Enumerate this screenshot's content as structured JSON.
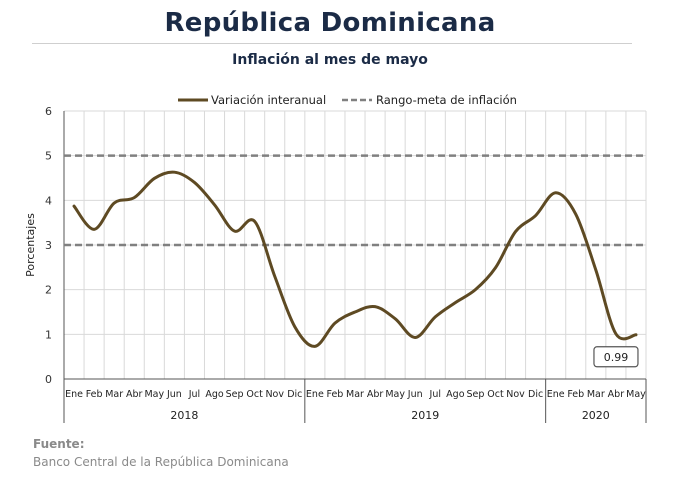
{
  "header": {
    "title": "República Dominicana",
    "subtitle": "Inflación al mes de mayo"
  },
  "source": {
    "label": "Fuente:",
    "text": "Banco Central de la República Dominicana"
  },
  "colors": {
    "series": "#5e4a23",
    "target": "#808080",
    "title": "#1b2b46",
    "grid": "#d9d9d9"
  },
  "chart_data": {
    "type": "line",
    "title": "Inflación al mes de mayo",
    "ylabel": "Porcentajes",
    "ylim": [
      0,
      6
    ],
    "yticks": [
      "0",
      "1",
      "2",
      "3",
      "4",
      "5",
      "6"
    ],
    "grid": true,
    "legend_position": "top",
    "categories": [
      "Ene",
      "Feb",
      "Mar",
      "Abr",
      "May",
      "Jun",
      "Jul",
      "Ago",
      "Sep",
      "Oct",
      "Nov",
      "Dic",
      "Ene",
      "Feb",
      "Mar",
      "Abr",
      "May",
      "Jun",
      "Jul",
      "Ago",
      "Sep",
      "Oct",
      "Nov",
      "Dic",
      "Ene",
      "Feb",
      "Mar",
      "Abr",
      "May"
    ],
    "years": [
      {
        "label": "2018",
        "start": 0,
        "end": 11
      },
      {
        "label": "2019",
        "start": 12,
        "end": 23
      },
      {
        "label": "2020",
        "start": 24,
        "end": 28
      }
    ],
    "series": [
      {
        "name": "Variación interanual",
        "style": "solid",
        "values": [
          3.87,
          3.35,
          3.94,
          4.06,
          4.49,
          4.63,
          4.4,
          3.9,
          3.31,
          3.53,
          2.3,
          1.17,
          0.73,
          1.25,
          1.5,
          1.62,
          1.35,
          0.93,
          1.39,
          1.71,
          2.0,
          2.49,
          3.3,
          3.66,
          4.17,
          3.69,
          2.44,
          1.01,
          0.99
        ]
      },
      {
        "name": "Rango-meta de inflación",
        "style": "dashed",
        "bands": [
          3,
          5
        ]
      }
    ],
    "annotations": [
      {
        "text": "0.99",
        "index": 28
      }
    ]
  }
}
